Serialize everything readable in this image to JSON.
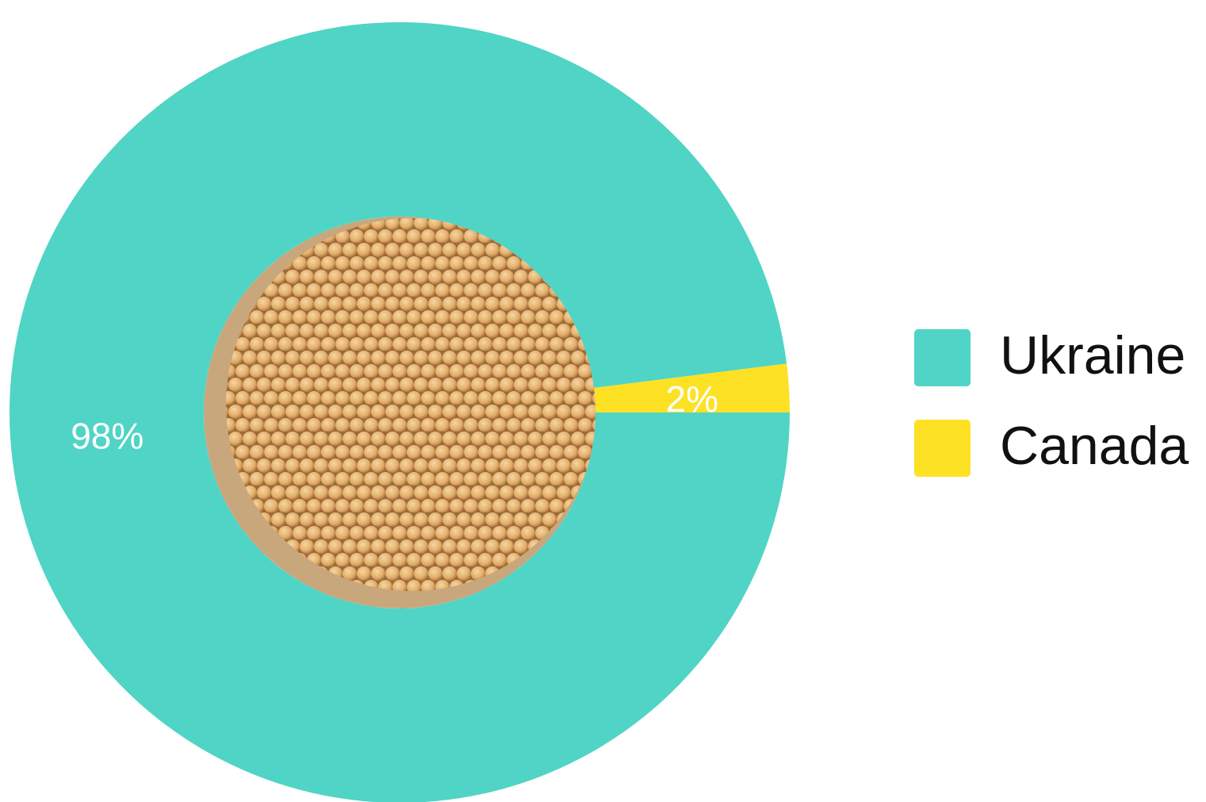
{
  "chart_data": {
    "type": "donut",
    "categories": [
      "Ukraine",
      "Canada"
    ],
    "values": [
      98,
      2
    ],
    "value_labels": [
      "98%",
      "2%"
    ],
    "colors": [
      "#50d4c6",
      "#fde125"
    ],
    "legend": "right"
  }
}
